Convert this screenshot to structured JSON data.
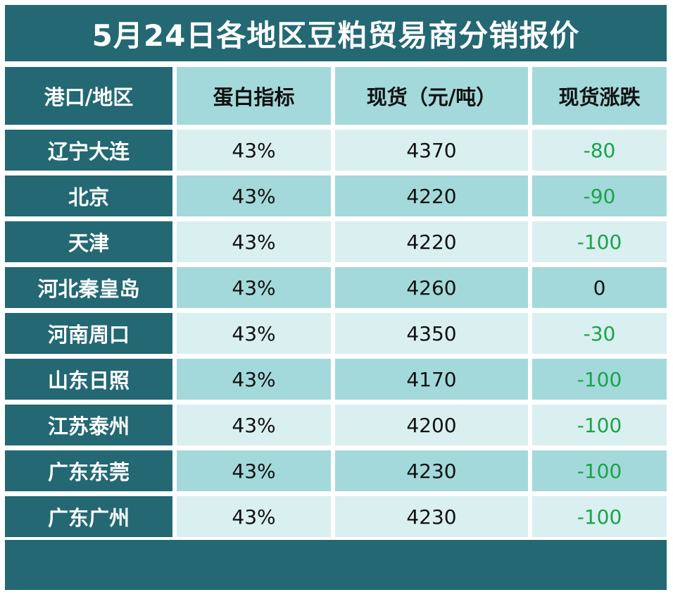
{
  "title": "5月24日各地区豆粕贸易商分销报价",
  "colors": {
    "dark_teal": "#236873",
    "light_teal": "#a4d9db",
    "pale_teal": "#daeff0",
    "down_green": "#1aa34a"
  },
  "headers": [
    "港口/地区",
    "蛋白指标",
    "现货（元/吨）",
    "现货涨跌"
  ],
  "rows": [
    {
      "region": "辽宁大连",
      "protein": "43%",
      "price": "4370",
      "change": "-80"
    },
    {
      "region": "北京",
      "protein": "43%",
      "price": "4220",
      "change": "-90"
    },
    {
      "region": "天津",
      "protein": "43%",
      "price": "4220",
      "change": "-100"
    },
    {
      "region": "河北秦皇岛",
      "protein": "43%",
      "price": "4260",
      "change": "0"
    },
    {
      "region": "河南周口",
      "protein": "43%",
      "price": "4350",
      "change": "-30"
    },
    {
      "region": "山东日照",
      "protein": "43%",
      "price": "4170",
      "change": "-100"
    },
    {
      "region": "江苏泰州",
      "protein": "43%",
      "price": "4200",
      "change": "-100"
    },
    {
      "region": "广东东莞",
      "protein": "43%",
      "price": "4230",
      "change": "-100"
    },
    {
      "region": "广东广州",
      "protein": "43%",
      "price": "4230",
      "change": "-100"
    }
  ]
}
